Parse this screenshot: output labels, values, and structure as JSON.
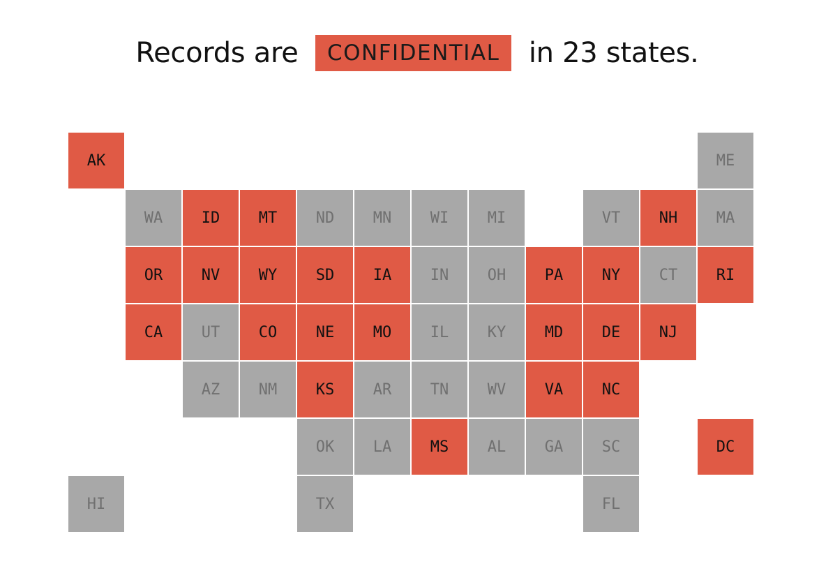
{
  "headline": {
    "prefix": "Records are",
    "badge": "CONFIDENTIAL",
    "suffix": "in 23 states."
  },
  "colors": {
    "confidential": "#e05a45",
    "other": "#a8a8a8"
  },
  "states": [
    {
      "code": "AK",
      "row": 0,
      "col": 0,
      "confidential": true
    },
    {
      "code": "ME",
      "row": 0,
      "col": 11,
      "confidential": false
    },
    {
      "code": "WA",
      "row": 1,
      "col": 1,
      "confidential": false
    },
    {
      "code": "ID",
      "row": 1,
      "col": 2,
      "confidential": true
    },
    {
      "code": "MT",
      "row": 1,
      "col": 3,
      "confidential": true
    },
    {
      "code": "ND",
      "row": 1,
      "col": 4,
      "confidential": false
    },
    {
      "code": "MN",
      "row": 1,
      "col": 5,
      "confidential": false
    },
    {
      "code": "WI",
      "row": 1,
      "col": 6,
      "confidential": false
    },
    {
      "code": "MI",
      "row": 1,
      "col": 7,
      "confidential": false
    },
    {
      "code": "VT",
      "row": 1,
      "col": 9,
      "confidential": false
    },
    {
      "code": "NH",
      "row": 1,
      "col": 10,
      "confidential": true
    },
    {
      "code": "MA",
      "row": 1,
      "col": 11,
      "confidential": false
    },
    {
      "code": "OR",
      "row": 2,
      "col": 1,
      "confidential": true
    },
    {
      "code": "NV",
      "row": 2,
      "col": 2,
      "confidential": true
    },
    {
      "code": "WY",
      "row": 2,
      "col": 3,
      "confidential": true
    },
    {
      "code": "SD",
      "row": 2,
      "col": 4,
      "confidential": true
    },
    {
      "code": "IA",
      "row": 2,
      "col": 5,
      "confidential": true
    },
    {
      "code": "IN",
      "row": 2,
      "col": 6,
      "confidential": false
    },
    {
      "code": "OH",
      "row": 2,
      "col": 7,
      "confidential": false
    },
    {
      "code": "PA",
      "row": 2,
      "col": 8,
      "confidential": true
    },
    {
      "code": "NY",
      "row": 2,
      "col": 9,
      "confidential": true
    },
    {
      "code": "CT",
      "row": 2,
      "col": 10,
      "confidential": false
    },
    {
      "code": "RI",
      "row": 2,
      "col": 11,
      "confidential": true
    },
    {
      "code": "CA",
      "row": 3,
      "col": 1,
      "confidential": true
    },
    {
      "code": "UT",
      "row": 3,
      "col": 2,
      "confidential": false
    },
    {
      "code": "CO",
      "row": 3,
      "col": 3,
      "confidential": true
    },
    {
      "code": "NE",
      "row": 3,
      "col": 4,
      "confidential": true
    },
    {
      "code": "MO",
      "row": 3,
      "col": 5,
      "confidential": true
    },
    {
      "code": "IL",
      "row": 3,
      "col": 6,
      "confidential": false
    },
    {
      "code": "KY",
      "row": 3,
      "col": 7,
      "confidential": false
    },
    {
      "code": "MD",
      "row": 3,
      "col": 8,
      "confidential": true
    },
    {
      "code": "DE",
      "row": 3,
      "col": 9,
      "confidential": true
    },
    {
      "code": "NJ",
      "row": 3,
      "col": 10,
      "confidential": true
    },
    {
      "code": "AZ",
      "row": 4,
      "col": 2,
      "confidential": false
    },
    {
      "code": "NM",
      "row": 4,
      "col": 3,
      "confidential": false
    },
    {
      "code": "KS",
      "row": 4,
      "col": 4,
      "confidential": true
    },
    {
      "code": "AR",
      "row": 4,
      "col": 5,
      "confidential": false
    },
    {
      "code": "TN",
      "row": 4,
      "col": 6,
      "confidential": false
    },
    {
      "code": "WV",
      "row": 4,
      "col": 7,
      "confidential": false
    },
    {
      "code": "VA",
      "row": 4,
      "col": 8,
      "confidential": true
    },
    {
      "code": "NC",
      "row": 4,
      "col": 9,
      "confidential": true
    },
    {
      "code": "OK",
      "row": 5,
      "col": 4,
      "confidential": false
    },
    {
      "code": "LA",
      "row": 5,
      "col": 5,
      "confidential": false
    },
    {
      "code": "MS",
      "row": 5,
      "col": 6,
      "confidential": true
    },
    {
      "code": "AL",
      "row": 5,
      "col": 7,
      "confidential": false
    },
    {
      "code": "GA",
      "row": 5,
      "col": 8,
      "confidential": false
    },
    {
      "code": "SC",
      "row": 5,
      "col": 9,
      "confidential": false
    },
    {
      "code": "DC",
      "row": 5,
      "col": 11,
      "confidential": true
    },
    {
      "code": "HI",
      "row": 6,
      "col": 0,
      "confidential": false
    },
    {
      "code": "TX",
      "row": 6,
      "col": 4,
      "confidential": false
    },
    {
      "code": "FL",
      "row": 6,
      "col": 9,
      "confidential": false
    }
  ]
}
